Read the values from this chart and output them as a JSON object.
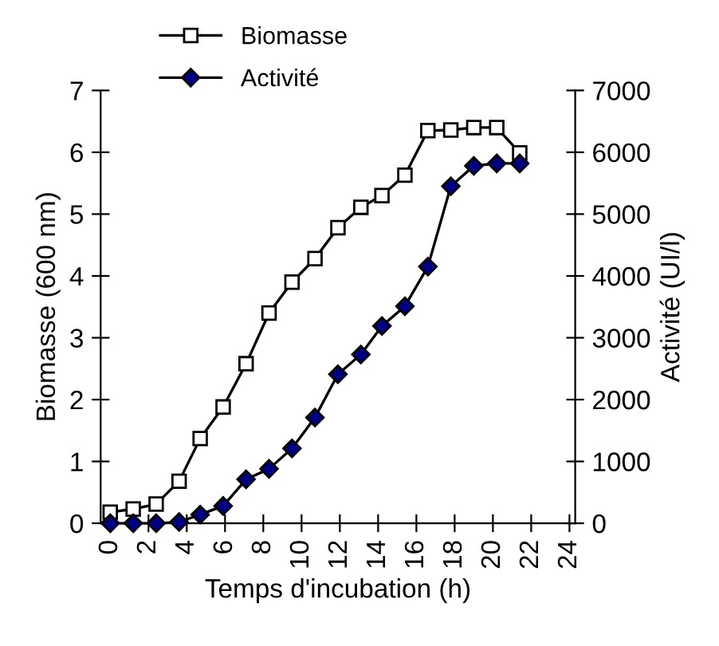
{
  "chart_data": {
    "type": "line",
    "xlabel": "Temps d'incubation (h)",
    "ylabel": "Biomasse (600 nm)",
    "y2label": "Activité (UI/l)",
    "x": [
      0,
      1.2,
      2.4,
      3.6,
      4.7,
      5.9,
      7.1,
      8.3,
      9.5,
      10.7,
      11.9,
      13.1,
      14.2,
      15.4,
      16.6,
      17.8,
      19.0,
      20.2,
      21.4
    ],
    "series": [
      {
        "name": "Biomasse",
        "color": "#ffffff",
        "marker": "square",
        "values": [
          0.18,
          0.23,
          0.31,
          0.68,
          1.37,
          1.88,
          2.58,
          3.4,
          3.9,
          4.28,
          4.78,
          5.11,
          5.3,
          5.63,
          6.35,
          6.36,
          6.4,
          6.4,
          5.99
        ]
      },
      {
        "name": "Activité",
        "color": "#000080",
        "marker": "diamond",
        "axis": "y2",
        "values": [
          0,
          0,
          0,
          20,
          140,
          280,
          710,
          880,
          1210,
          1710,
          2410,
          2730,
          3190,
          3510,
          4150,
          5450,
          5780,
          5820,
          5820
        ]
      }
    ],
    "xlim": [
      -0.5,
      24.3
    ],
    "xticks": [
      0,
      2,
      4,
      6,
      8,
      10,
      12,
      14,
      16,
      18,
      20,
      22,
      24
    ],
    "ylim": [
      0,
      7
    ],
    "yticks": [
      0,
      1,
      2,
      3,
      4,
      5,
      6,
      7
    ],
    "y2lim": [
      0,
      7000
    ],
    "y2ticks": [
      0,
      1000,
      2000,
      3000,
      4000,
      5000,
      6000,
      7000
    ],
    "legend": "top left",
    "line_style": "solid"
  }
}
